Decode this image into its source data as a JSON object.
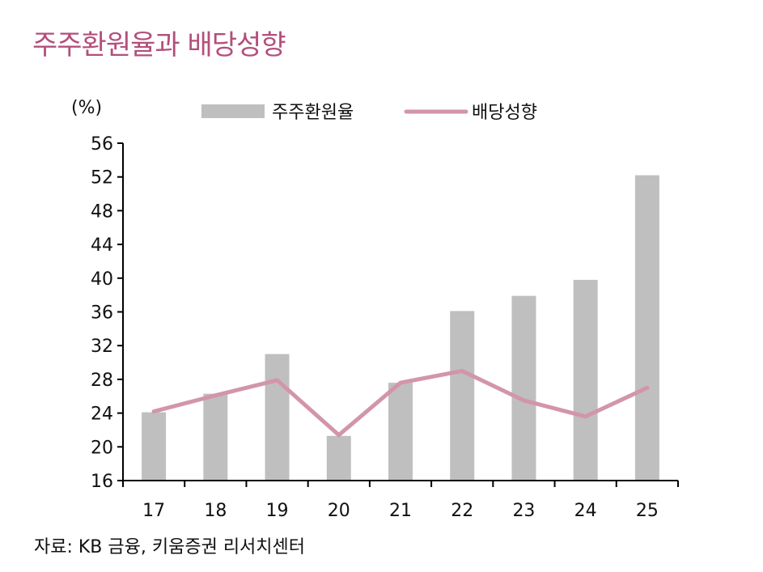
{
  "title": "주주환원율과 배당성향",
  "source": "자료: KB 금융,  키움증권  리서치센터",
  "chart_data": {
    "type": "bar+line",
    "title": "주주환원율과 배당성향",
    "ylabel": "(%)",
    "categories": [
      "17",
      "18",
      "19",
      "20",
      "21",
      "22",
      "23",
      "24",
      "25"
    ],
    "ylim": [
      16,
      56
    ],
    "yticks": [
      16,
      20,
      24,
      28,
      32,
      36,
      40,
      44,
      48,
      52,
      56
    ],
    "grid": false,
    "legend": "top",
    "series": [
      {
        "name": "주주환원율",
        "type": "bar",
        "color": "#bfbfbf",
        "values": [
          24.1,
          26.3,
          31.0,
          21.3,
          27.6,
          36.1,
          37.9,
          39.8,
          52.2
        ]
      },
      {
        "name": "배당성향",
        "type": "line",
        "color": "#d295aa",
        "values": [
          24.2,
          26.1,
          27.9,
          21.4,
          27.6,
          29.0,
          25.5,
          23.6,
          27.0
        ]
      }
    ]
  }
}
